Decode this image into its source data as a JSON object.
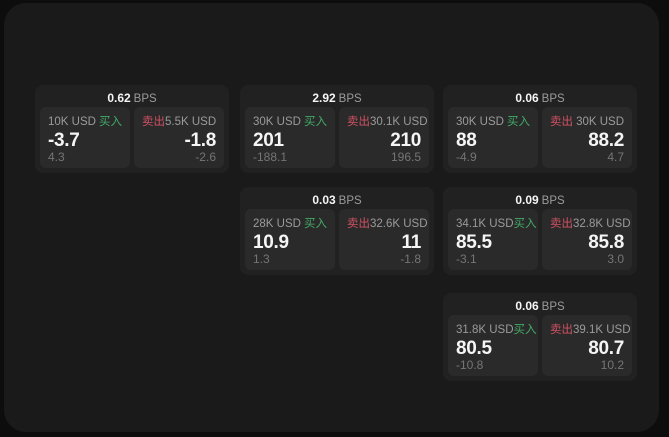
{
  "colors": {
    "page_bg": "#0d0d0d",
    "panel_bg": "#1a1a1a",
    "card_bg": "#212121",
    "cell_bg": "#2a2a2a",
    "text_primary": "#f5f5f5",
    "text_muted": "#9b9b9b",
    "text_dim": "#757575",
    "buy_green": "#42ab66",
    "sell_red": "#d15163"
  },
  "labels": {
    "bps": "BPS",
    "buy": "买入",
    "sell": "卖出"
  },
  "cards": [
    {
      "bps": "0.62",
      "row": 1,
      "col": 1,
      "buy": {
        "size": "10K USD",
        "price": "-3.7",
        "delta": "4.3"
      },
      "sell": {
        "size": "5.5K USD",
        "price": "-1.8",
        "delta": "-2.6"
      }
    },
    {
      "bps": "2.92",
      "row": 1,
      "col": 2,
      "buy": {
        "size": "30K USD",
        "price": "201",
        "delta": "-188.1"
      },
      "sell": {
        "size": "30.1K USD",
        "price": "210",
        "delta": "196.5"
      }
    },
    {
      "bps": "0.06",
      "row": 1,
      "col": 3,
      "buy": {
        "size": "30K USD",
        "price": "88",
        "delta": "-4.9"
      },
      "sell": {
        "size": "30K USD",
        "price": "88.2",
        "delta": "4.7"
      }
    },
    {
      "bps": "0.03",
      "row": 2,
      "col": 2,
      "buy": {
        "size": "28K USD",
        "price": "10.9",
        "delta": "1.3"
      },
      "sell": {
        "size": "32.6K USD",
        "price": "11",
        "delta": "-1.8"
      }
    },
    {
      "bps": "0.09",
      "row": 2,
      "col": 3,
      "buy": {
        "size": "34.1K USD",
        "price": "85.5",
        "delta": "-3.1"
      },
      "sell": {
        "size": "32.8K USD",
        "price": "85.8",
        "delta": "3.0"
      }
    },
    {
      "bps": "0.06",
      "row": 3,
      "col": 3,
      "buy": {
        "size": "31.8K USD",
        "price": "80.5",
        "delta": "-10.8"
      },
      "sell": {
        "size": "39.1K USD",
        "price": "80.7",
        "delta": "10.2"
      }
    }
  ]
}
